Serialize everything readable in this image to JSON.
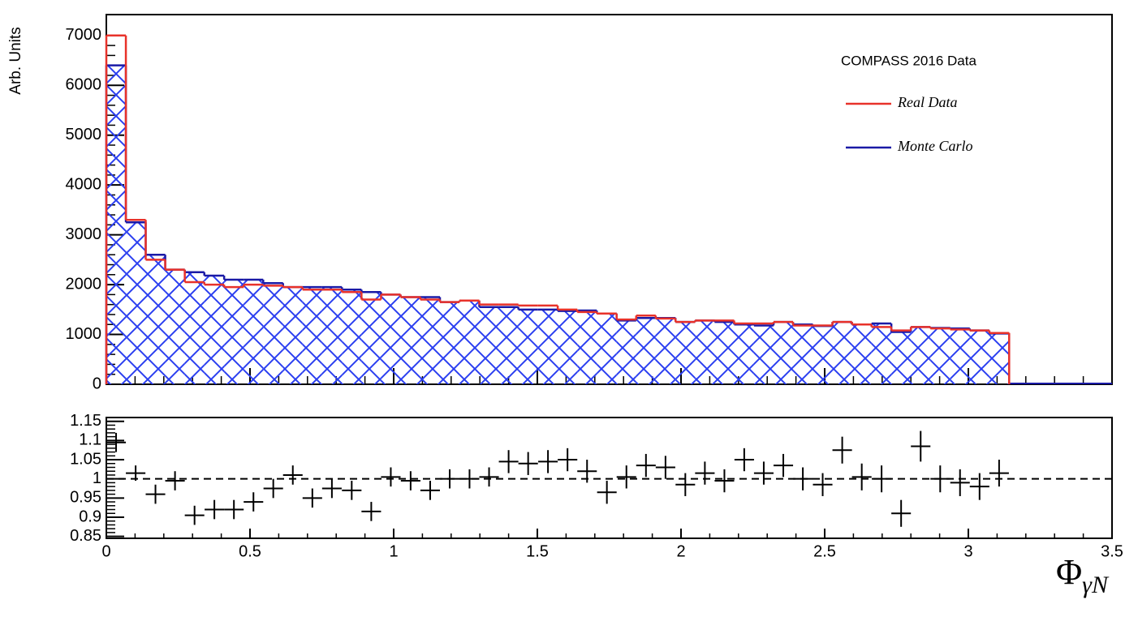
{
  "chart_data": [
    {
      "type": "histogram",
      "y_label": "Arb. Units",
      "legend_title": "COMPASS 2016 Data",
      "legend": "upper right",
      "bins": [
        0,
        0.068,
        0.137,
        0.205,
        0.273,
        0.341,
        0.41,
        0.478,
        0.546,
        0.615,
        0.683,
        0.751,
        0.82,
        0.888,
        0.956,
        1.024,
        1.093,
        1.161,
        1.229,
        1.298,
        1.366,
        1.434,
        1.502,
        1.571,
        1.639,
        1.707,
        1.776,
        1.844,
        1.912,
        1.981,
        2.049,
        2.117,
        2.185,
        2.254,
        2.322,
        2.39,
        2.459,
        2.527,
        2.595,
        2.663,
        2.732,
        2.8,
        2.868,
        2.937,
        3.005,
        3.073,
        3.142
      ],
      "series": [
        {
          "name": "Real Data",
          "color": "#e8322a",
          "values": [
            7000,
            3300,
            2500,
            2300,
            2050,
            2000,
            1950,
            2000,
            1980,
            1950,
            1900,
            1900,
            1850,
            1700,
            1800,
            1750,
            1700,
            1650,
            1680,
            1600,
            1600,
            1580,
            1580,
            1500,
            1450,
            1420,
            1300,
            1380,
            1320,
            1250,
            1280,
            1280,
            1220,
            1220,
            1250,
            1180,
            1180,
            1250,
            1200,
            1150,
            1080,
            1150,
            1120,
            1100,
            1080,
            1030
          ]
        },
        {
          "name": "Monte Carlo",
          "color": "#1a1aa6",
          "hatch_color": "#2b3ff0",
          "values": [
            6400,
            3250,
            2600,
            2300,
            2250,
            2180,
            2100,
            2100,
            2030,
            1950,
            1950,
            1950,
            1900,
            1850,
            1800,
            1750,
            1750,
            1650,
            1680,
            1550,
            1550,
            1500,
            1500,
            1470,
            1480,
            1420,
            1280,
            1330,
            1330,
            1250,
            1280,
            1250,
            1200,
            1180,
            1250,
            1200,
            1170,
            1250,
            1200,
            1220,
            1050,
            1150,
            1130,
            1120,
            1080,
            1020
          ]
        }
      ],
      "xlim": [
        0,
        3.5
      ],
      "xticks": [
        0,
        0.5,
        1,
        1.5,
        2,
        2.5,
        3,
        3.5
      ],
      "ylim": [
        0,
        7420
      ],
      "yticks": [
        0,
        1000,
        2000,
        3000,
        4000,
        5000,
        6000,
        7000
      ]
    },
    {
      "type": "errorbar",
      "x_label": {
        "symbol": "Φ",
        "subscript": "γN"
      },
      "x": [
        0.034,
        0.102,
        0.171,
        0.239,
        0.307,
        0.376,
        0.444,
        0.512,
        0.581,
        0.649,
        0.717,
        0.785,
        0.854,
        0.922,
        0.99,
        1.059,
        1.127,
        1.195,
        1.264,
        1.332,
        1.4,
        1.468,
        1.537,
        1.605,
        1.673,
        1.742,
        1.81,
        1.878,
        1.946,
        2.015,
        2.083,
        2.151,
        2.22,
        2.288,
        2.356,
        2.424,
        2.493,
        2.561,
        2.629,
        2.698,
        2.766,
        2.834,
        2.902,
        2.971,
        3.039,
        3.107
      ],
      "values": [
        1.095,
        1.015,
        0.96,
        0.995,
        0.905,
        0.92,
        0.92,
        0.94,
        0.975,
        1.01,
        0.95,
        0.975,
        0.97,
        0.915,
        1.005,
        0.995,
        0.97,
        1.0,
        1.0,
        1.005,
        1.045,
        1.04,
        1.045,
        1.05,
        1.02,
        0.965,
        1.005,
        1.035,
        1.03,
        0.985,
        1.015,
        0.995,
        1.05,
        1.015,
        1.035,
        1.0,
        0.985,
        1.075,
        1.005,
        1.0,
        0.91,
        1.085,
        1.0,
        0.99,
        0.98,
        1.015
      ],
      "errors": [
        0.025,
        0.02,
        0.025,
        0.025,
        0.025,
        0.025,
        0.025,
        0.025,
        0.025,
        0.025,
        0.025,
        0.025,
        0.025,
        0.025,
        0.025,
        0.025,
        0.025,
        0.025,
        0.025,
        0.025,
        0.03,
        0.03,
        0.03,
        0.03,
        0.03,
        0.03,
        0.03,
        0.03,
        0.03,
        0.03,
        0.03,
        0.03,
        0.03,
        0.03,
        0.03,
        0.03,
        0.03,
        0.035,
        0.035,
        0.035,
        0.035,
        0.04,
        0.035,
        0.035,
        0.035,
        0.035
      ],
      "color": "#000000",
      "reference_line": 1,
      "xlim": [
        0,
        3.5
      ],
      "xticks": [
        0,
        0.5,
        1,
        1.5,
        2,
        2.5,
        3,
        3.5
      ],
      "ylim": [
        0.845,
        1.16
      ],
      "yticks": [
        0.85,
        0.9,
        0.95,
        1,
        1.05,
        1.1,
        1.15
      ]
    }
  ]
}
